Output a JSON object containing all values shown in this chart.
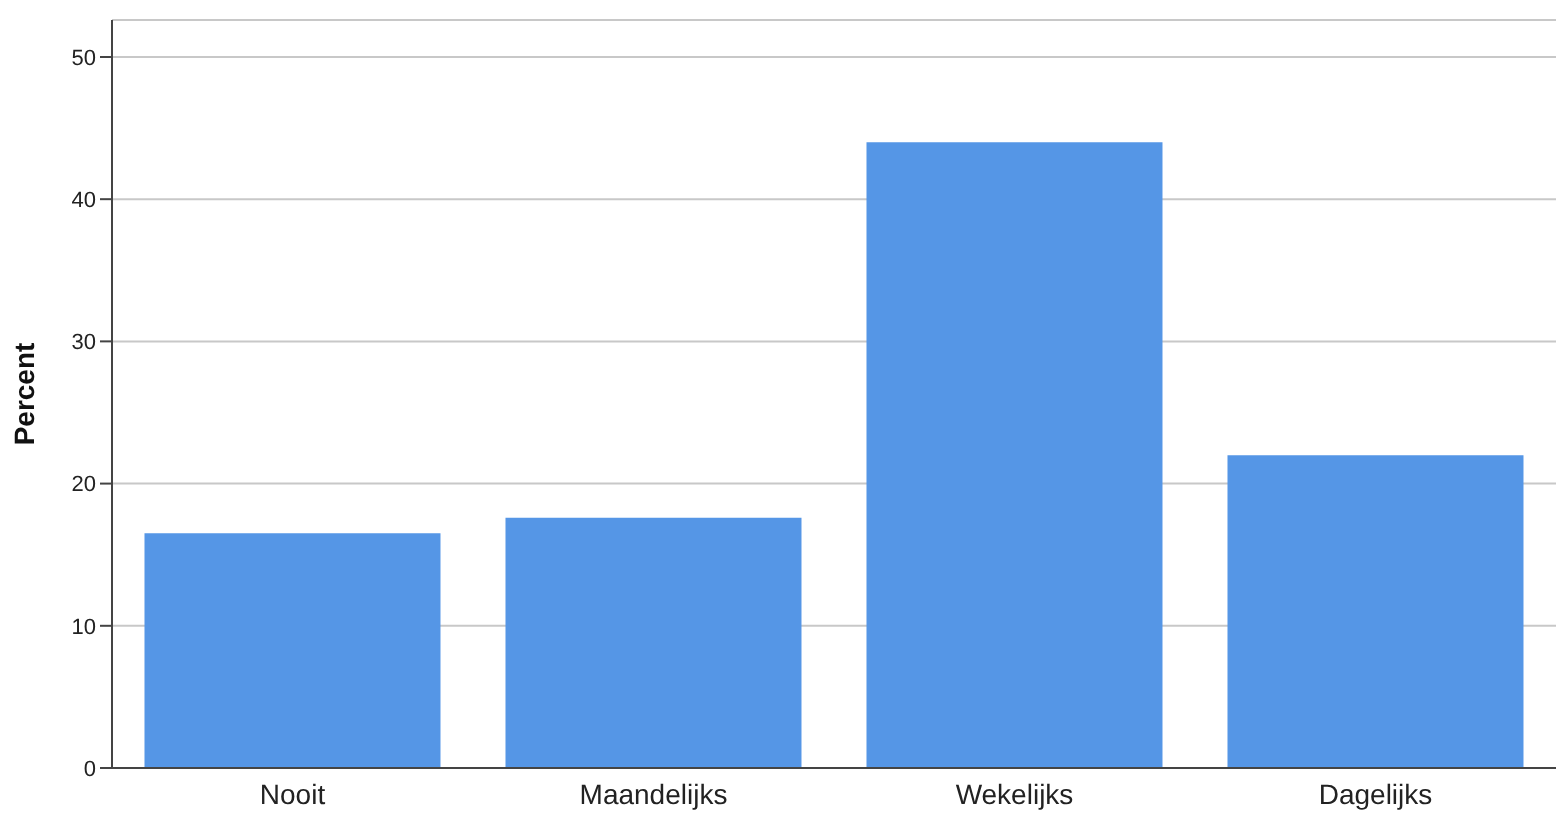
{
  "chart_data": {
    "type": "bar",
    "ylabel": "Percent",
    "categories": [
      "Nooit",
      "Maandelijks",
      "Wekelijks",
      "Dagelijks"
    ],
    "values": [
      16.5,
      17.6,
      44.0,
      22.0
    ],
    "color": "#5596e6",
    "ylim": [
      0,
      52.6
    ],
    "yticks": [
      0,
      10,
      20,
      30,
      40,
      50
    ],
    "grid": "y"
  }
}
